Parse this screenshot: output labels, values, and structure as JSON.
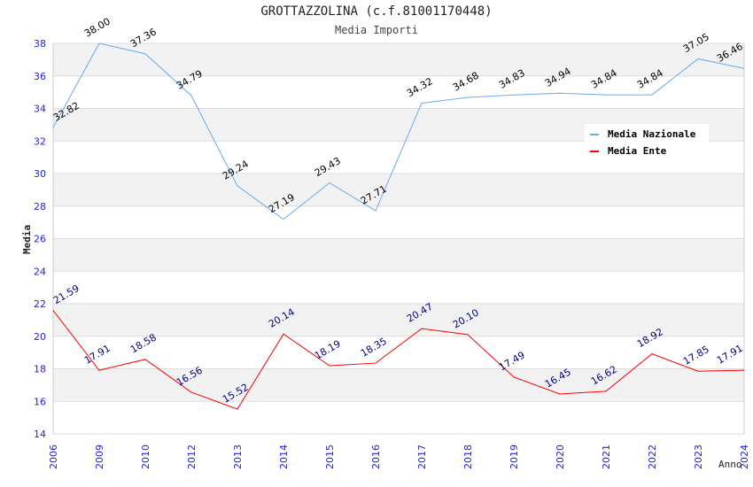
{
  "chart_data": {
    "type": "line",
    "title": "GROTTAZZOLINA (c.f.81001170448)",
    "subtitle": "Media Importi",
    "xlabel": "Anno",
    "ylabel": "Media",
    "ylim": [
      14,
      38
    ],
    "yticks": [
      "14",
      "16",
      "18",
      "20",
      "22",
      "24",
      "26",
      "28",
      "30",
      "32",
      "34",
      "36",
      "38"
    ],
    "categories": [
      "2006",
      "2009",
      "2010",
      "2012",
      "2013",
      "2014",
      "2015",
      "2016",
      "2017",
      "2018",
      "2019",
      "2020",
      "2021",
      "2022",
      "2023",
      "2024"
    ],
    "series": [
      {
        "name": "Media Nazionale",
        "color": "#6aaaee",
        "values": [
          32.82,
          38.0,
          37.36,
          34.79,
          29.24,
          27.19,
          29.43,
          27.71,
          34.32,
          34.68,
          34.83,
          34.94,
          34.84,
          34.84,
          37.05,
          36.46
        ],
        "labels": [
          "32.82",
          "38.00",
          "37.36",
          "34.79",
          "29.24",
          "27.19",
          "29.43",
          "27.71",
          "34.32",
          "34.68",
          "34.83",
          "34.94",
          "34.84",
          "34.84",
          "37.05",
          "36.46"
        ]
      },
      {
        "name": "Media Ente",
        "color": "#ff0000",
        "values": [
          21.59,
          17.91,
          18.58,
          16.56,
          15.52,
          20.14,
          18.19,
          18.35,
          20.47,
          20.1,
          17.49,
          16.45,
          16.62,
          18.92,
          17.85,
          17.91
        ],
        "labels": [
          "21.59",
          "17.91",
          "18.58",
          "16.56",
          "15.52",
          "20.14",
          "18.19",
          "18.35",
          "20.47",
          "20.10",
          "17.49",
          "16.45",
          "16.62",
          "18.92",
          "17.85",
          "17.91"
        ]
      }
    ],
    "grid": true,
    "legend": "top-right"
  }
}
